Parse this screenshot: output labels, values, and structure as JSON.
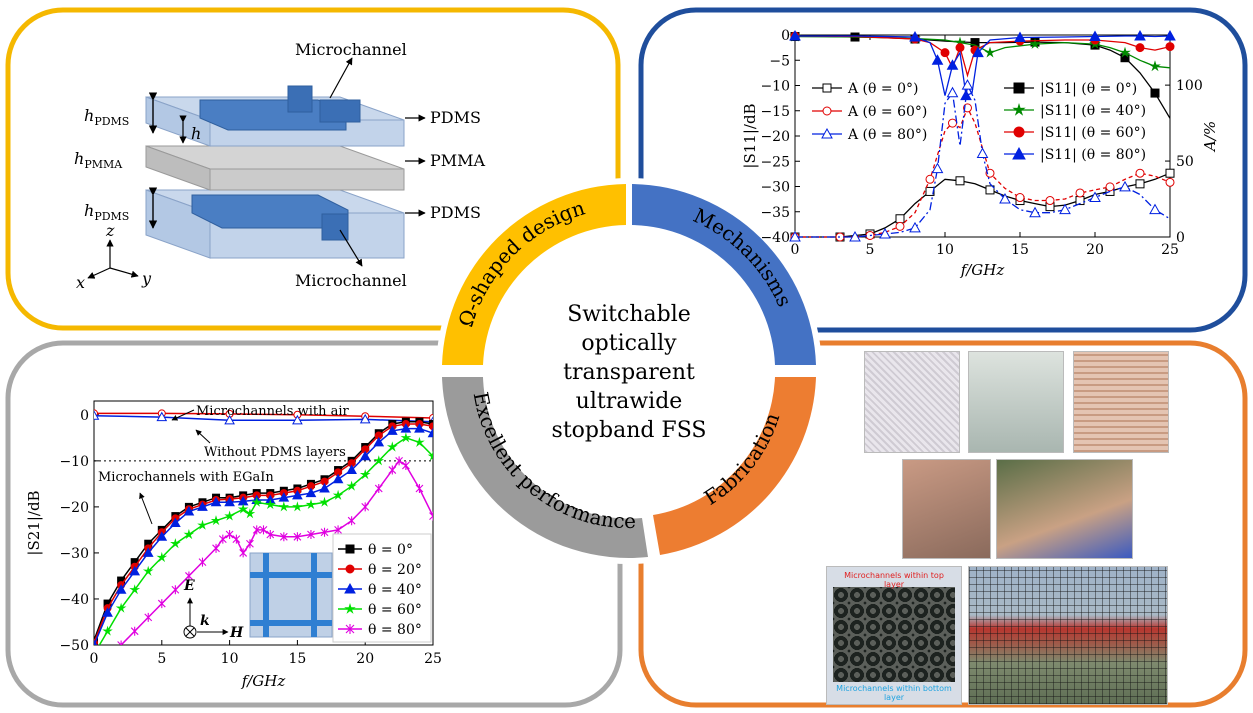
{
  "colors": {
    "yellow": "#f5b800",
    "blue": "#1f4e9c",
    "gray": "#a8a8a8",
    "orange": "#e87e2e",
    "ring_blue": "#4472c4",
    "ring_orange": "#ed7d31",
    "ring_gray": "#9b9b9b",
    "ring_yellow": "#ffc000"
  },
  "center": {
    "lines": [
      "Switchable",
      "optically",
      "transparent",
      "ultrawide",
      "stopband FSS"
    ]
  },
  "ring": {
    "design": "Ω-shaped design",
    "mechanisms": "Mechanisms",
    "fabrication": "Fabrication",
    "performance": "Excellent performance"
  },
  "structure": {
    "microchannel_top": "Microchannel",
    "microchannel_bottom": "Microchannel",
    "pdms_top": "PDMS",
    "pmma": "PMMA",
    "pdms_bottom": "PDMS",
    "h_pdms_top": "h",
    "h_pdms_top_sub": "PDMS",
    "h_pmma": "h",
    "h_pmma_sub": "PMMA",
    "h_pdms_bottom": "h",
    "h_pdms_bottom_sub": "PDMS",
    "h_small": "h",
    "axis_z": "z",
    "axis_x": "x",
    "axis_y": "y"
  },
  "fabrication": {
    "label_top": "Microchannels within top layer",
    "label_bottom": "Microchannels within bottom layer"
  },
  "chart_data": [
    {
      "type": "line",
      "xlabel": "f/GHz",
      "ylabel_left": "|S11|/dB",
      "ylabel_right": "A/%",
      "xlim": [
        0,
        25
      ],
      "ylim_left": [
        -40,
        0
      ],
      "ylim_right": [
        0,
        133
      ],
      "xticks": [
        0,
        5,
        10,
        15,
        20,
        25
      ],
      "yticks_left": [
        0,
        -5,
        -10,
        -15,
        -20,
        -25,
        -30,
        -35,
        -40
      ],
      "yticks_right": [
        0,
        50,
        100
      ],
      "legend": [
        {
          "label": "A (θ = 0°)",
          "color": "#000000",
          "marker": "square-open"
        },
        {
          "label": "A (θ = 60°)",
          "color": "#e00000",
          "marker": "circle-open"
        },
        {
          "label": "A (θ = 80°)",
          "color": "#0020e0",
          "marker": "triangle-open"
        },
        {
          "label": "|S11| (θ = 0°)",
          "color": "#000000",
          "marker": "square"
        },
        {
          "label": "|S11| (θ = 40°)",
          "color": "#008a00",
          "marker": "star"
        },
        {
          "label": "|S11| (θ = 60°)",
          "color": "#e00000",
          "marker": "circle"
        },
        {
          "label": "|S11| (θ = 80°)",
          "color": "#0020e0",
          "marker": "triangle"
        }
      ],
      "series": [
        {
          "name": "|S11| (θ = 0°)",
          "axis": "left",
          "color": "#000000",
          "dash": "",
          "marker": "square",
          "x": [
            0,
            2,
            4,
            6,
            8,
            10,
            12,
            14,
            16,
            18,
            20,
            21,
            22,
            23,
            24,
            25
          ],
          "y": [
            -0.3,
            -0.3,
            -0.4,
            -0.5,
            -0.8,
            -1.2,
            -1.5,
            -1.5,
            -1.4,
            -1.5,
            -2.0,
            -3.0,
            -4.5,
            -7.5,
            -11.5,
            -16.5
          ]
        },
        {
          "name": "|S11| (θ = 40°)",
          "axis": "left",
          "color": "#008a00",
          "dash": "",
          "marker": "star",
          "x": [
            0,
            4,
            8,
            10,
            11,
            12,
            13,
            14,
            16,
            18,
            20,
            21,
            22,
            23,
            24,
            25
          ],
          "y": [
            -0.3,
            -0.4,
            -0.7,
            -1.0,
            -1.5,
            -2.0,
            -3.5,
            -2.5,
            -1.8,
            -1.5,
            -1.8,
            -2.5,
            -3.5,
            -5.0,
            -6.2,
            -6.5
          ]
        },
        {
          "name": "|S11| (θ = 60°)",
          "axis": "left",
          "color": "#e00000",
          "dash": "",
          "marker": "circle",
          "x": [
            0,
            4,
            8,
            9,
            10,
            10.5,
            11,
            11.5,
            12,
            13,
            15,
            18,
            20,
            22,
            23,
            24,
            25
          ],
          "y": [
            -0.2,
            -0.3,
            -0.8,
            -1.5,
            -3.5,
            -6.5,
            -2.5,
            -8.0,
            -3.0,
            -1.5,
            -1.2,
            -1.0,
            -1.0,
            -1.5,
            -2.5,
            -3.0,
            -2.3
          ]
        },
        {
          "name": "|S11| (θ = 80°)",
          "axis": "left",
          "color": "#0020e0",
          "dash": "",
          "marker": "triangle",
          "x": [
            0,
            4,
            8,
            9,
            9.5,
            10,
            10.5,
            11,
            11.4,
            11.8,
            12.2,
            13,
            15,
            18,
            20,
            22,
            23,
            24,
            25
          ],
          "y": [
            -0.2,
            -0.2,
            -0.4,
            -1.5,
            -5.0,
            -12.0,
            -6.0,
            -3.5,
            -12.0,
            -11.5,
            -3.5,
            -1.0,
            -0.5,
            -0.4,
            -0.3,
            -0.2,
            -0.2,
            -0.3,
            -0.2
          ]
        },
        {
          "name": "A (θ = 0°)",
          "axis": "right",
          "color": "#000000",
          "dash": "",
          "marker": "square-open",
          "x": [
            0,
            2,
            3,
            4,
            5,
            6,
            7,
            8,
            9,
            10,
            11,
            12,
            13,
            14,
            15,
            16,
            17,
            18,
            19,
            20,
            21,
            22,
            23,
            24,
            25
          ],
          "y": [
            0,
            0,
            0,
            1,
            2,
            6,
            12,
            22,
            30,
            38,
            37,
            35,
            31,
            27,
            24,
            22,
            20,
            21,
            24,
            28,
            30,
            33,
            35,
            38,
            42
          ]
        },
        {
          "name": "A (θ = 60°)",
          "axis": "right",
          "color": "#e00000",
          "dash": "4,3",
          "marker": "circle-open",
          "x": [
            0,
            2,
            3,
            4,
            5,
            6,
            7,
            8,
            9,
            10,
            10.5,
            11,
            11.5,
            12,
            13,
            14,
            15,
            16,
            17,
            18,
            19,
            20,
            21,
            22,
            23,
            24,
            25
          ],
          "y": [
            0,
            0,
            0,
            0,
            1,
            3,
            7,
            16,
            38,
            70,
            75,
            72,
            85,
            75,
            42,
            32,
            26,
            24,
            24,
            25,
            29,
            31,
            33,
            38,
            42,
            40,
            36
          ]
        },
        {
          "name": "A (θ = 80°)",
          "axis": "right",
          "color": "#0020e0",
          "dash": "8,3,2,3",
          "marker": "triangle-open",
          "x": [
            0,
            2,
            4,
            5,
            6,
            7,
            8,
            9,
            9.5,
            10,
            10.5,
            11,
            11.5,
            12,
            12.5,
            13,
            14,
            15,
            16,
            17,
            18,
            19,
            20,
            21,
            22,
            23,
            24,
            25
          ],
          "y": [
            0,
            0,
            0,
            1,
            2,
            3,
            6,
            18,
            45,
            88,
            95,
            60,
            100,
            90,
            55,
            35,
            25,
            18,
            16,
            16,
            18,
            22,
            26,
            30,
            33,
            28,
            18,
            12
          ]
        }
      ]
    },
    {
      "type": "line",
      "xlabel": "f/GHz",
      "ylabel": "|S21|/dB",
      "xlim": [
        0,
        25
      ],
      "ylim": [
        -50,
        3
      ],
      "xticks": [
        0,
        5,
        10,
        15,
        20,
        25
      ],
      "yticks": [
        0,
        -10,
        -20,
        -30,
        -40,
        -50
      ],
      "annotations": [
        "Microchannels with air",
        "Without PDMS layers",
        "Microchannels with EGaIn"
      ],
      "wave": {
        "E": "E",
        "k": "k",
        "H": "H"
      },
      "legend": [
        {
          "label": "θ = 0°",
          "color": "#000000",
          "marker": "square"
        },
        {
          "label": "θ = 20°",
          "color": "#e00000",
          "marker": "circle"
        },
        {
          "label": "θ = 40°",
          "color": "#0020e0",
          "marker": "triangle"
        },
        {
          "label": "θ = 60°",
          "color": "#00e000",
          "marker": "star"
        },
        {
          "label": "θ = 80°",
          "color": "#e000e0",
          "marker": "x"
        }
      ],
      "series": [
        {
          "name": "Microchannels with air",
          "color": "#e00000",
          "marker": "circle-open",
          "dash": "",
          "x": [
            0,
            5,
            10,
            15,
            20,
            25
          ],
          "y": [
            0.3,
            0.3,
            0.2,
            0.0,
            -0.3,
            -0.7
          ]
        },
        {
          "name": "Without PDMS layers",
          "color": "#0020e0",
          "marker": "triangle-open",
          "dash": "",
          "x": [
            0,
            5,
            10,
            15,
            20,
            25
          ],
          "y": [
            -0.2,
            -0.5,
            -1.2,
            -1.2,
            -1.0,
            -1.5
          ]
        },
        {
          "name": "θ = 0°",
          "color": "#000000",
          "marker": "square",
          "dash": "",
          "x": [
            0,
            1,
            2,
            3,
            4,
            5,
            6,
            7,
            8,
            9,
            10,
            11,
            12,
            13,
            14,
            15,
            16,
            17,
            18,
            19,
            20,
            21,
            22,
            23,
            24,
            25
          ],
          "y": [
            -49,
            -41,
            -36,
            -32,
            -28,
            -25,
            -22,
            -20,
            -19,
            -18,
            -18,
            -17.5,
            -17,
            -17,
            -16.5,
            -16,
            -15,
            -14,
            -12,
            -10,
            -7,
            -4,
            -2,
            -1.5,
            -1.5,
            -2
          ]
        },
        {
          "name": "θ = 20°",
          "color": "#e00000",
          "marker": "circle",
          "dash": "",
          "x": [
            0,
            1,
            2,
            3,
            4,
            5,
            6,
            7,
            8,
            9,
            10,
            11,
            12,
            13,
            14,
            15,
            16,
            17,
            18,
            19,
            20,
            21,
            22,
            23,
            24,
            25
          ],
          "y": [
            -49.5,
            -42,
            -37,
            -33,
            -29,
            -25.5,
            -22.5,
            -20.5,
            -19.5,
            -18.5,
            -18.3,
            -18,
            -17.5,
            -17.5,
            -17,
            -16.5,
            -15.5,
            -14.5,
            -12.5,
            -10.5,
            -7.5,
            -4.5,
            -2.5,
            -2,
            -2,
            -2.5
          ]
        },
        {
          "name": "θ = 40°",
          "color": "#0020e0",
          "marker": "triangle",
          "dash": "",
          "x": [
            0,
            1,
            2,
            3,
            4,
            5,
            6,
            7,
            8,
            9,
            10,
            11,
            12,
            13,
            14,
            15,
            16,
            17,
            18,
            19,
            20,
            21,
            22,
            23,
            24,
            25
          ],
          "y": [
            -50,
            -43,
            -38,
            -34,
            -30,
            -26.5,
            -23.5,
            -21,
            -20,
            -19,
            -19,
            -18.8,
            -18.5,
            -18.5,
            -18,
            -17.5,
            -17,
            -16,
            -14,
            -12,
            -9,
            -6,
            -3.5,
            -3,
            -3,
            -4
          ]
        },
        {
          "name": "θ = 60°",
          "color": "#00e000",
          "marker": "star",
          "dash": "",
          "x": [
            0,
            1,
            2,
            3,
            4,
            5,
            6,
            7,
            8,
            9,
            10,
            11,
            11.5,
            12,
            13,
            14,
            15,
            16,
            17,
            18,
            19,
            20,
            21,
            22,
            23,
            24,
            25
          ],
          "y": [
            -52,
            -47,
            -42,
            -38,
            -34,
            -31,
            -28,
            -26,
            -24,
            -23,
            -22,
            -20.5,
            -21.5,
            -19,
            -19.5,
            -20,
            -20,
            -19.5,
            -19,
            -17.5,
            -15.5,
            -13,
            -10,
            -7,
            -5,
            -6,
            -9
          ]
        },
        {
          "name": "θ = 80°",
          "color": "#e000e0",
          "marker": "x",
          "dash": "",
          "x": [
            2,
            3,
            4,
            5,
            6,
            7,
            8,
            9,
            9.5,
            10,
            10.5,
            11,
            11.5,
            12,
            12.5,
            13,
            14,
            15,
            16,
            17,
            18,
            19,
            20,
            21,
            22,
            22.5,
            23,
            24,
            25
          ],
          "y": [
            -50,
            -47,
            -44,
            -41,
            -38,
            -35,
            -32,
            -29,
            -27,
            -26,
            -27,
            -30,
            -28,
            -25,
            -25,
            -26,
            -26.5,
            -26.5,
            -26,
            -25.5,
            -25,
            -23,
            -20,
            -16,
            -12,
            -10,
            -11,
            -16,
            -22
          ]
        }
      ]
    }
  ]
}
